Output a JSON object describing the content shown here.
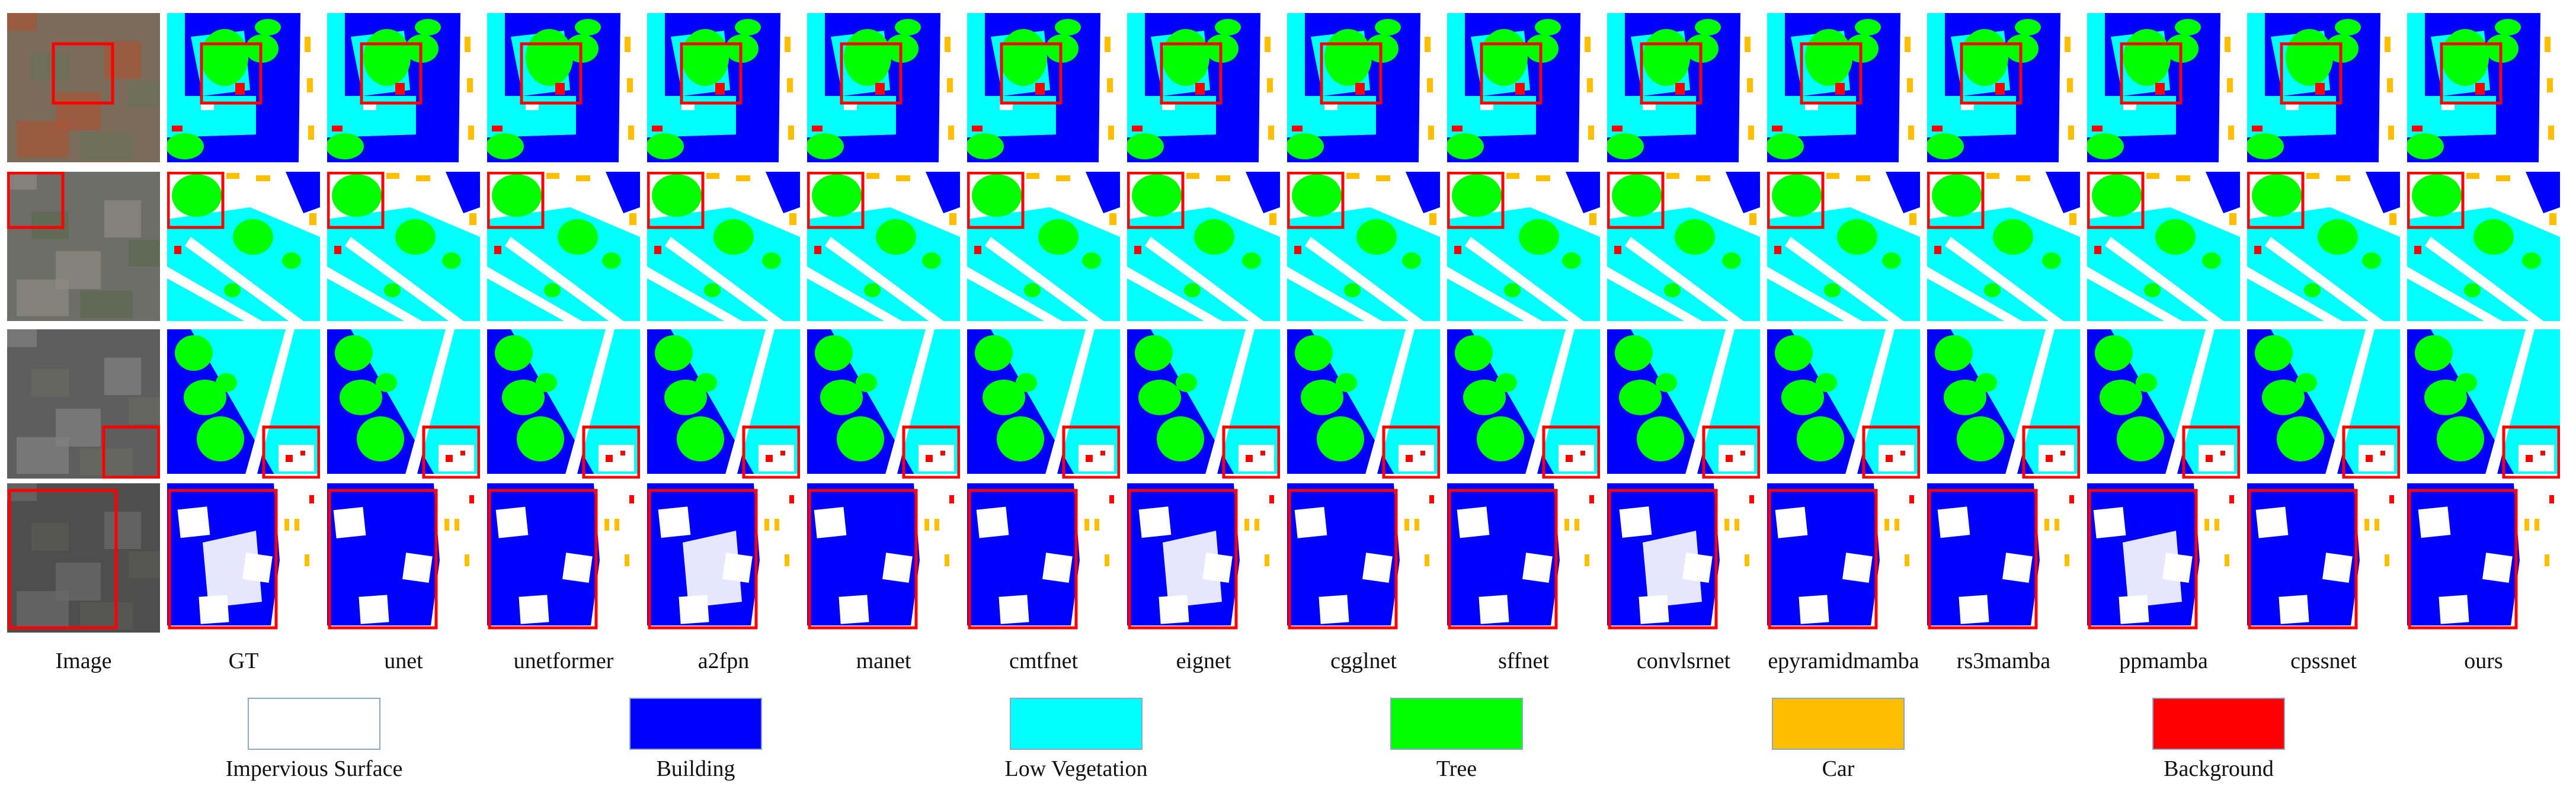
{
  "columns": [
    "Image",
    "GT",
    "unet",
    "unetformer",
    "a2fpn",
    "manet",
    "cmtfnet",
    "eignet",
    "cgglnet",
    "sffnet",
    "convlsrnet",
    "epyramidmamba",
    "rs3mamba",
    "ppmamba",
    "cpssnet",
    "ours"
  ],
  "legend": [
    {
      "label": "Impervious Surface",
      "color": "#ffffff"
    },
    {
      "label": "Building",
      "color": "#0000ff"
    },
    {
      "label": "Low Vegetation",
      "color": "#00ffff"
    },
    {
      "label": "Tree",
      "color": "#00ff00"
    },
    {
      "label": "Car",
      "color": "#ffbf00"
    },
    {
      "label": "Background",
      "color": "#ff0000"
    }
  ],
  "highlight_color": "#ff0000"
}
